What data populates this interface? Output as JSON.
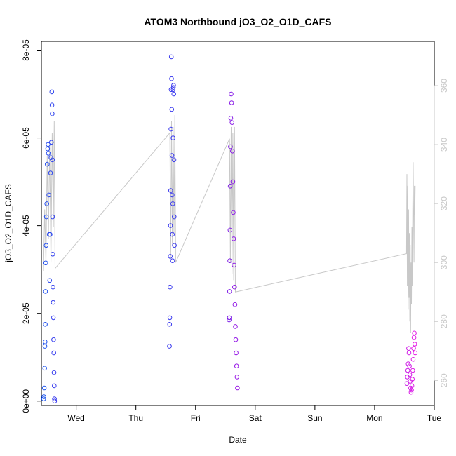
{
  "chart_data": {
    "type": "scatter",
    "title": "ATOM3 Northbound jO3_O2_O1D_CAFS",
    "xlabel": "Date",
    "ylabel": "jO3_O2_O1D_CAFS",
    "x_ticks": [
      "Wed",
      "Thu",
      "Fri",
      "Sat",
      "Sun",
      "Mon",
      "Tue"
    ],
    "y_ticks": [
      "0e+00",
      "2e-05",
      "4e-05",
      "6e-05",
      "8e-05"
    ],
    "y_tick_values": [
      0,
      2e-05,
      4e-05,
      6e-05,
      8e-05
    ],
    "ylim": [
      -1e-06,
      8.2e-05
    ],
    "y2_ticks": [
      "260",
      "280",
      "300",
      "320",
      "340",
      "360"
    ],
    "y2_tick_values": [
      260,
      280,
      300,
      320,
      340,
      360
    ],
    "y2lim": [
      251.5,
      375
    ],
    "xlim": [
      "2017-09-26T10:00",
      "2017-10-03T00:00"
    ],
    "grid": false,
    "colors": {
      "series": [
        "#1a55ee",
        "#3333ee",
        "#8a1ae6",
        "#e61ae6"
      ],
      "secondary_line": "#c8c8c8",
      "axis": "#000000"
    },
    "series": [
      {
        "marker": "open-circle",
        "color_gradient": [
          "#1a55ee",
          "#3a3aee"
        ],
        "points": [
          [
            "2017-09-26T10:55",
            5e-07
          ],
          [
            "2017-09-26T11:00",
            1e-06
          ],
          [
            "2017-09-26T11:10",
            3e-06
          ],
          [
            "2017-09-26T11:20",
            7.5e-06
          ],
          [
            "2017-09-26T11:25",
            1.25e-05
          ],
          [
            "2017-09-26T11:30",
            1.35e-05
          ],
          [
            "2017-09-26T11:35",
            1.75e-05
          ],
          [
            "2017-09-26T11:40",
            2.5e-05
          ],
          [
            "2017-09-26T11:45",
            3.15e-05
          ],
          [
            "2017-09-26T11:55",
            3.55e-05
          ],
          [
            "2017-09-26T12:00",
            4.2e-05
          ],
          [
            "2017-09-26T12:10",
            4.5e-05
          ],
          [
            "2017-09-26T12:20",
            5.4e-05
          ],
          [
            "2017-09-26T12:30",
            5.75e-05
          ],
          [
            "2017-09-26T12:40",
            5.85e-05
          ],
          [
            "2017-09-26T12:50",
            5.65e-05
          ],
          [
            "2017-09-26T13:00",
            4.7e-05
          ],
          [
            "2017-09-26T13:10",
            3.8e-05
          ],
          [
            "2017-09-26T13:20",
            2.75e-05
          ],
          [
            "2017-09-26T13:30",
            3.8e-05
          ],
          [
            "2017-09-26T13:40",
            5.2e-05
          ],
          [
            "2017-09-26T13:50",
            5.55e-05
          ],
          [
            "2017-09-26T14:00",
            5.9e-05
          ],
          [
            "2017-09-26T14:10",
            7.05e-05
          ],
          [
            "2017-09-26T14:15",
            6.75e-05
          ],
          [
            "2017-09-26T14:20",
            6.55e-05
          ],
          [
            "2017-09-26T14:25",
            5.5e-05
          ],
          [
            "2017-09-26T14:30",
            4.2e-05
          ],
          [
            "2017-09-26T14:35",
            3.35e-05
          ],
          [
            "2017-09-26T14:40",
            2.6e-05
          ],
          [
            "2017-09-26T14:45",
            2.25e-05
          ],
          [
            "2017-09-26T14:50",
            1.9e-05
          ],
          [
            "2017-09-26T14:55",
            1.4e-05
          ],
          [
            "2017-09-26T15:00",
            1.1e-05
          ],
          [
            "2017-09-26T15:05",
            6.5e-06
          ],
          [
            "2017-09-26T15:10",
            3.5e-06
          ],
          [
            "2017-09-26T15:15",
            5e-07
          ],
          [
            "2017-09-26T15:20",
            0.0
          ]
        ]
      },
      {
        "marker": "open-circle",
        "color_gradient": [
          "#3a3aee",
          "#3a3aee"
        ],
        "points": [
          [
            "2017-09-28T13:30",
            1.25e-05
          ],
          [
            "2017-09-28T13:35",
            1.75e-05
          ],
          [
            "2017-09-28T13:40",
            1.9e-05
          ],
          [
            "2017-09-28T13:45",
            2.6e-05
          ],
          [
            "2017-09-28T13:50",
            3.3e-05
          ],
          [
            "2017-09-28T13:55",
            4e-05
          ],
          [
            "2017-09-28T14:00",
            4.8e-05
          ],
          [
            "2017-09-28T14:05",
            6.2e-05
          ],
          [
            "2017-09-28T14:10",
            7.1e-05
          ],
          [
            "2017-09-28T14:15",
            7.85e-05
          ],
          [
            "2017-09-28T14:20",
            7.35e-05
          ],
          [
            "2017-09-28T14:25",
            6.65e-05
          ],
          [
            "2017-09-28T14:30",
            5.6e-05
          ],
          [
            "2017-09-28T14:35",
            4.7e-05
          ],
          [
            "2017-09-28T14:40",
            3.8e-05
          ],
          [
            "2017-09-28T14:45",
            3.2e-05
          ],
          [
            "2017-09-28T14:50",
            4.5e-05
          ],
          [
            "2017-09-28T14:55",
            6e-05
          ],
          [
            "2017-09-28T15:00",
            7.1e-05
          ],
          [
            "2017-09-28T15:05",
            7.15e-05
          ],
          [
            "2017-09-28T15:10",
            7.2e-05
          ],
          [
            "2017-09-28T15:15",
            7e-05
          ],
          [
            "2017-09-28T15:20",
            5.5e-05
          ],
          [
            "2017-09-28T15:25",
            4.2e-05
          ],
          [
            "2017-09-28T15:30",
            3.55e-05
          ]
        ]
      },
      {
        "marker": "open-circle",
        "color_gradient": [
          "#7a1ae6",
          "#9a1ae6"
        ],
        "points": [
          [
            "2017-09-29T13:30",
            1.85e-05
          ],
          [
            "2017-09-29T13:35",
            1.9e-05
          ],
          [
            "2017-09-29T13:40",
            2.5e-05
          ],
          [
            "2017-09-29T13:45",
            3.2e-05
          ],
          [
            "2017-09-29T13:50",
            3.9e-05
          ],
          [
            "2017-09-29T13:55",
            4.9e-05
          ],
          [
            "2017-09-29T14:00",
            5.8e-05
          ],
          [
            "2017-09-29T14:10",
            6.45e-05
          ],
          [
            "2017-09-29T14:20",
            7e-05
          ],
          [
            "2017-09-29T14:30",
            6.8e-05
          ],
          [
            "2017-09-29T14:40",
            6.35e-05
          ],
          [
            "2017-09-29T14:50",
            5.7e-05
          ],
          [
            "2017-09-29T15:00",
            5e-05
          ],
          [
            "2017-09-29T15:10",
            4.3e-05
          ],
          [
            "2017-09-29T15:20",
            3.7e-05
          ],
          [
            "2017-09-29T15:30",
            3.1e-05
          ],
          [
            "2017-09-29T15:40",
            2.6e-05
          ],
          [
            "2017-09-29T15:50",
            2.2e-05
          ],
          [
            "2017-09-29T16:00",
            1.7e-05
          ],
          [
            "2017-09-29T16:10",
            1.4e-05
          ],
          [
            "2017-09-29T16:20",
            1.1e-05
          ],
          [
            "2017-09-29T16:30",
            8e-06
          ],
          [
            "2017-09-29T16:40",
            5.5e-06
          ],
          [
            "2017-09-29T16:50",
            3e-06
          ]
        ]
      },
      {
        "marker": "open-circle",
        "color_gradient": [
          "#c81ae6",
          "#e61ae6"
        ],
        "points": [
          [
            "2017-10-02T13:00",
            4e-06
          ],
          [
            "2017-10-02T13:10",
            5.5e-06
          ],
          [
            "2017-10-02T13:20",
            7e-06
          ],
          [
            "2017-10-02T13:30",
            8.5e-06
          ],
          [
            "2017-10-02T13:40",
            1.2e-05
          ],
          [
            "2017-10-02T13:50",
            1.1e-05
          ],
          [
            "2017-10-02T14:00",
            8e-06
          ],
          [
            "2017-10-02T14:10",
            6e-06
          ],
          [
            "2017-10-02T14:20",
            4.5e-06
          ],
          [
            "2017-10-02T14:30",
            3e-06
          ],
          [
            "2017-10-02T14:40",
            2e-06
          ],
          [
            "2017-10-02T14:50",
            2.5e-06
          ],
          [
            "2017-10-02T15:00",
            3.5e-06
          ],
          [
            "2017-10-02T15:10",
            5e-06
          ],
          [
            "2017-10-02T15:20",
            7e-06
          ],
          [
            "2017-10-02T15:30",
            9.5e-06
          ],
          [
            "2017-10-02T15:40",
            1.2e-05
          ],
          [
            "2017-10-02T15:50",
            1.45e-05
          ],
          [
            "2017-10-02T16:00",
            1.55e-05
          ],
          [
            "2017-10-02T16:10",
            1.3e-05
          ],
          [
            "2017-10-02T16:20",
            1.1e-05
          ]
        ]
      }
    ],
    "secondary_series": {
      "type": "line",
      "axis": "right",
      "color": "#c8c8c8",
      "points": [
        [
          "2017-09-26T10:50",
          297
        ],
        [
          "2017-09-26T11:20",
          318
        ],
        [
          "2017-09-26T11:50",
          300
        ],
        [
          "2017-09-26T12:20",
          336
        ],
        [
          "2017-09-26T12:50",
          308
        ],
        [
          "2017-09-26T13:20",
          340
        ],
        [
          "2017-09-26T13:50",
          300
        ],
        [
          "2017-09-26T14:20",
          344
        ],
        [
          "2017-09-26T14:50",
          312
        ],
        [
          "2017-09-26T15:10",
          348
        ],
        [
          "2017-09-26T15:30",
          298
        ],
        [
          "2017-09-28T13:40",
          344
        ],
        [
          "2017-09-28T14:00",
          302
        ],
        [
          "2017-09-28T14:20",
          348
        ],
        [
          "2017-09-28T14:40",
          306
        ],
        [
          "2017-09-28T15:00",
          346
        ],
        [
          "2017-09-28T15:20",
          310
        ],
        [
          "2017-09-28T15:40",
          350
        ],
        [
          "2017-09-28T16:00",
          300
        ],
        [
          "2017-09-29T13:40",
          342
        ],
        [
          "2017-09-29T14:00",
          300
        ],
        [
          "2017-09-29T14:20",
          346
        ],
        [
          "2017-09-29T14:40",
          296
        ],
        [
          "2017-09-29T15:00",
          344
        ],
        [
          "2017-09-29T15:20",
          294
        ],
        [
          "2017-09-29T15:40",
          346
        ],
        [
          "2017-09-29T16:00",
          290
        ],
        [
          "2017-10-02T12:50",
          303
        ],
        [
          "2017-10-02T13:00",
          330
        ],
        [
          "2017-10-02T13:10",
          292
        ],
        [
          "2017-10-02T13:20",
          326
        ],
        [
          "2017-10-02T13:30",
          284
        ],
        [
          "2017-10-02T13:40",
          318
        ],
        [
          "2017-10-02T13:50",
          288
        ],
        [
          "2017-10-02T14:00",
          310
        ],
        [
          "2017-10-02T14:10",
          280
        ],
        [
          "2017-10-02T14:20",
          306
        ],
        [
          "2017-10-02T14:30",
          276
        ],
        [
          "2017-10-02T14:40",
          300
        ],
        [
          "2017-10-02T14:50",
          286
        ],
        [
          "2017-10-02T15:00",
          312
        ],
        [
          "2017-10-02T15:10",
          292
        ],
        [
          "2017-10-02T15:20",
          318
        ],
        [
          "2017-10-02T15:30",
          334
        ],
        [
          "2017-10-02T15:40",
          316
        ],
        [
          "2017-10-02T15:50",
          300
        ],
        [
          "2017-10-02T16:00",
          326
        ],
        [
          "2017-10-02T16:10",
          316
        ],
        [
          "2017-10-02T16:20",
          326
        ]
      ]
    }
  }
}
